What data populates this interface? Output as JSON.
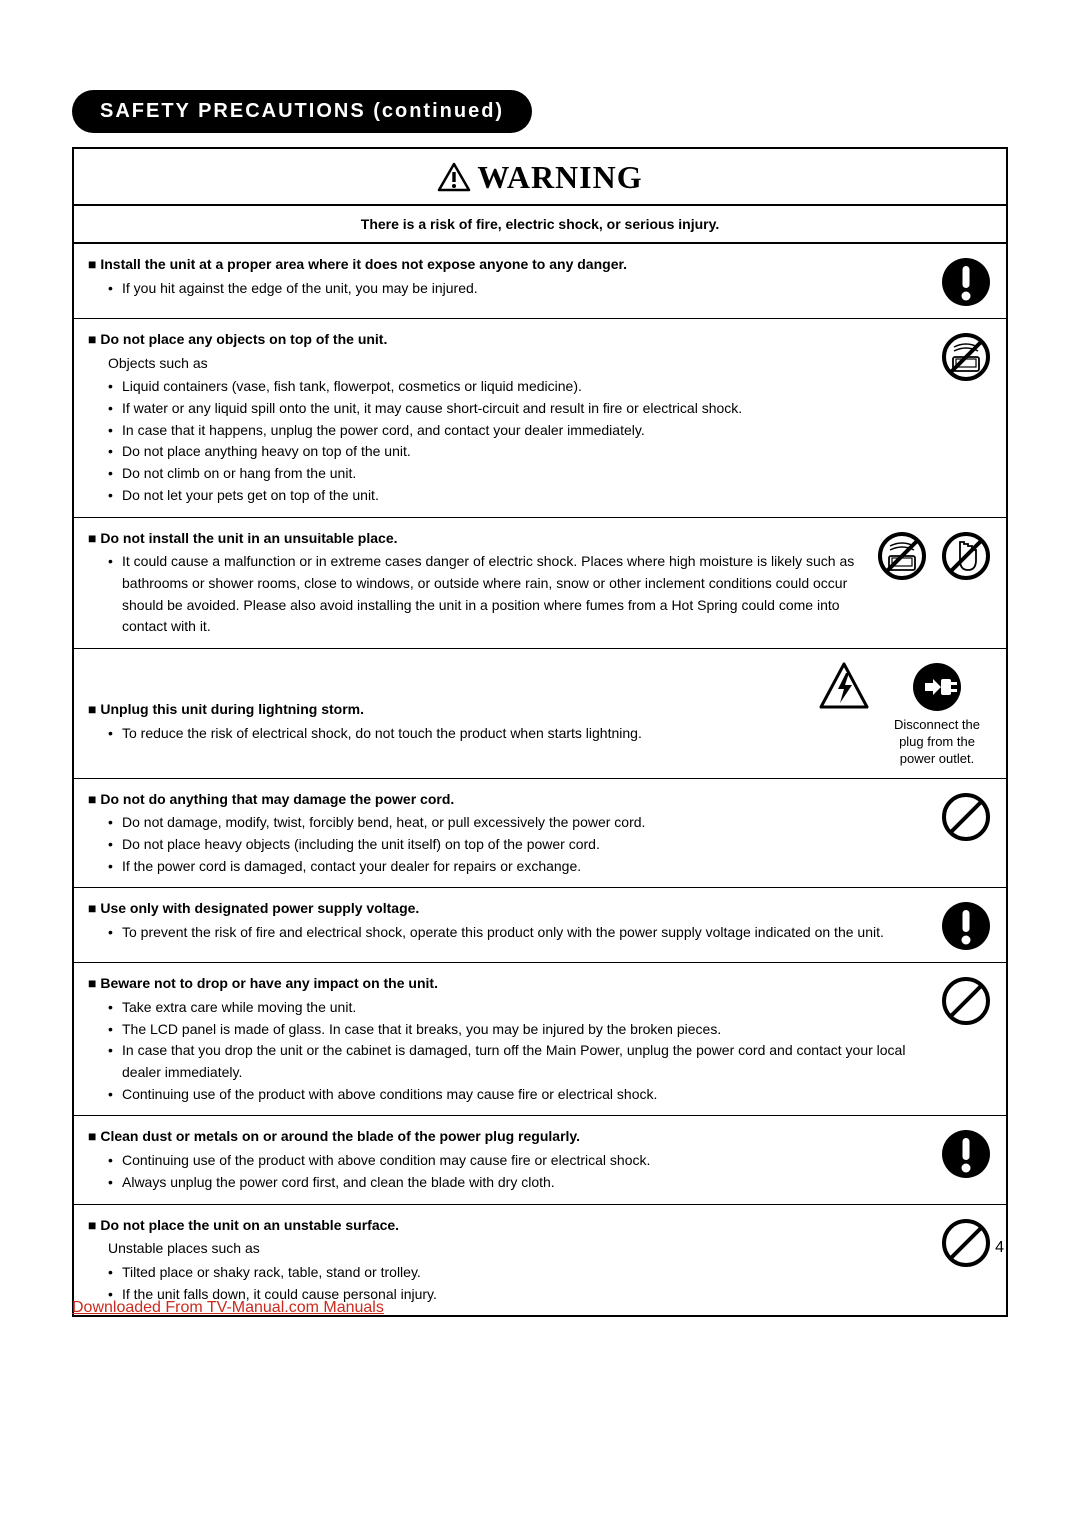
{
  "header_pill": "SAFETY PRECAUTIONS (continued)",
  "warning_label": "WARNING",
  "subheading": "There is a risk of fire, electric shock, or serious injury.",
  "page_number": "4",
  "footer_link": "Downloaded From TV-Manual.com Manuals",
  "colors": {
    "black": "#000000",
    "white": "#ffffff",
    "link": "#cc2a1e"
  },
  "icon_size": 52,
  "sections": [
    {
      "title": "Install the unit at a proper area where it does not expose anyone to any danger.",
      "intro": "",
      "bullets": [
        "If you hit against the edge of the unit, you may be injured."
      ],
      "icons": [
        {
          "type": "mandatory-exclaim"
        }
      ]
    },
    {
      "title": "Do not place any objects on top of the unit.",
      "intro": "Objects such as",
      "bullets": [
        "Liquid containers (vase, fish tank, flowerpot, cosmetics or liquid medicine).",
        "If water or any liquid spill onto the unit, it may cause short-circuit and result in fire or electrical shock.",
        "In case that it happens, unplug the power cord, and contact your dealer immediately.",
        "Do not place anything heavy on top of the unit.",
        "Do not climb on or hang from the unit.",
        "Do not let your pets get on top of the unit."
      ],
      "icons": [
        {
          "type": "prohibit-wet"
        }
      ]
    },
    {
      "title": "Do not install the unit in an unsuitable place.",
      "intro": "",
      "bullets": [
        "It could cause a malfunction or in extreme cases danger of electric shock. Places where high moisture is likely such as bathrooms or shower rooms, close to windows, or outside where rain, snow or other inclement conditions could occur should be avoided. Please also avoid installing the unit in a position where fumes from a Hot Spring could come into contact with it."
      ],
      "icons": [
        {
          "type": "prohibit-wet"
        },
        {
          "type": "prohibit-touch"
        }
      ]
    },
    {
      "title": "Unplug this unit during lightning storm.",
      "intro": "",
      "bullets": [
        "To reduce the risk of electrical shock, do not touch the product when starts lightning."
      ],
      "icons": [
        {
          "type": "caution-shock"
        },
        {
          "type": "mandatory-unplug",
          "caption": "Disconnect the plug from the power outlet."
        }
      ],
      "title_top_gap": 40
    },
    {
      "title": "Do not do anything that may damage the power cord.",
      "intro": "",
      "bullets": [
        "Do not damage, modify, twist, forcibly bend, heat, or pull excessively the power cord.",
        "Do not place heavy objects (including the unit itself) on top of the power cord.",
        "If the power cord is damaged, contact your dealer for repairs or exchange."
      ],
      "icons": [
        {
          "type": "prohibit"
        }
      ]
    },
    {
      "title": "Use only with designated power supply voltage.",
      "intro": "",
      "justify": true,
      "bullets": [
        "To prevent the risk of fire and electrical shock, operate this product only with the power supply voltage indicated on the unit."
      ],
      "icons": [
        {
          "type": "mandatory-exclaim"
        }
      ]
    },
    {
      "title": "Beware not to drop or have any impact on the unit.",
      "intro": "",
      "bullets": [
        "Take extra care while moving the unit.",
        "The LCD panel is made of glass. In case that it breaks, you may be injured by the broken pieces.",
        "In case that you drop the unit or the cabinet is damaged, turn off the Main Power, unplug the power cord and contact your local dealer immediately.",
        "Continuing use of the product with above conditions may cause fire or electrical shock."
      ],
      "icons": [
        {
          "type": "prohibit"
        }
      ]
    },
    {
      "title": "Clean dust or metals on or around the blade of the power plug regularly.",
      "intro": "",
      "bullets": [
        "Continuing use of the product with above condition may cause fire or electrical shock.",
        "Always unplug the power cord first, and clean the blade with dry cloth."
      ],
      "icons": [
        {
          "type": "mandatory-exclaim"
        }
      ]
    },
    {
      "title": "Do not place the unit on an unstable surface.",
      "intro": "Unstable places such as",
      "bullets": [
        "Tilted place or shaky rack, table, stand or trolley.",
        "If the unit falls down, it could cause personal injury."
      ],
      "icons": [
        {
          "type": "prohibit"
        }
      ]
    }
  ]
}
